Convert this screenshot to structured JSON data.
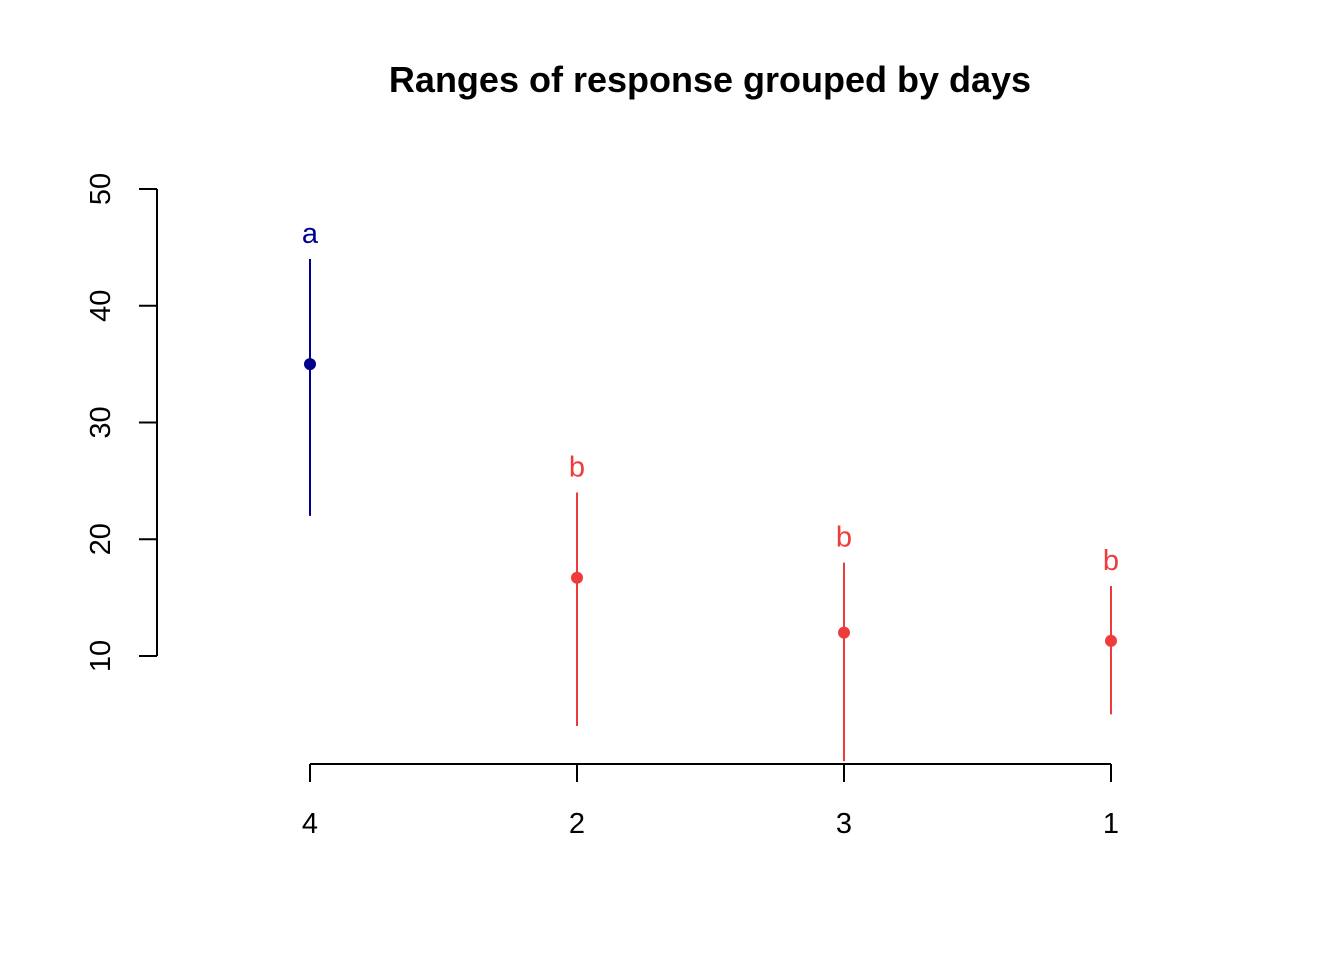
{
  "chart_data": {
    "type": "scatter",
    "title": "Ranges of response grouped by days",
    "xlabel": "",
    "ylabel": "",
    "categories": [
      "4",
      "2",
      "3",
      "1"
    ],
    "means": [
      35,
      16.7,
      12,
      11.3
    ],
    "lower": [
      22,
      4,
      1,
      5
    ],
    "upper": [
      44,
      24,
      18,
      16
    ],
    "group_letters": [
      "a",
      "b",
      "b",
      "b"
    ],
    "y_ticks": [
      10,
      20,
      30,
      40,
      50
    ],
    "ylim": [
      1,
      50
    ],
    "group_colors": {
      "a": "#00008B",
      "b": "#EE3B3B"
    },
    "grid": false,
    "legend": "none"
  }
}
